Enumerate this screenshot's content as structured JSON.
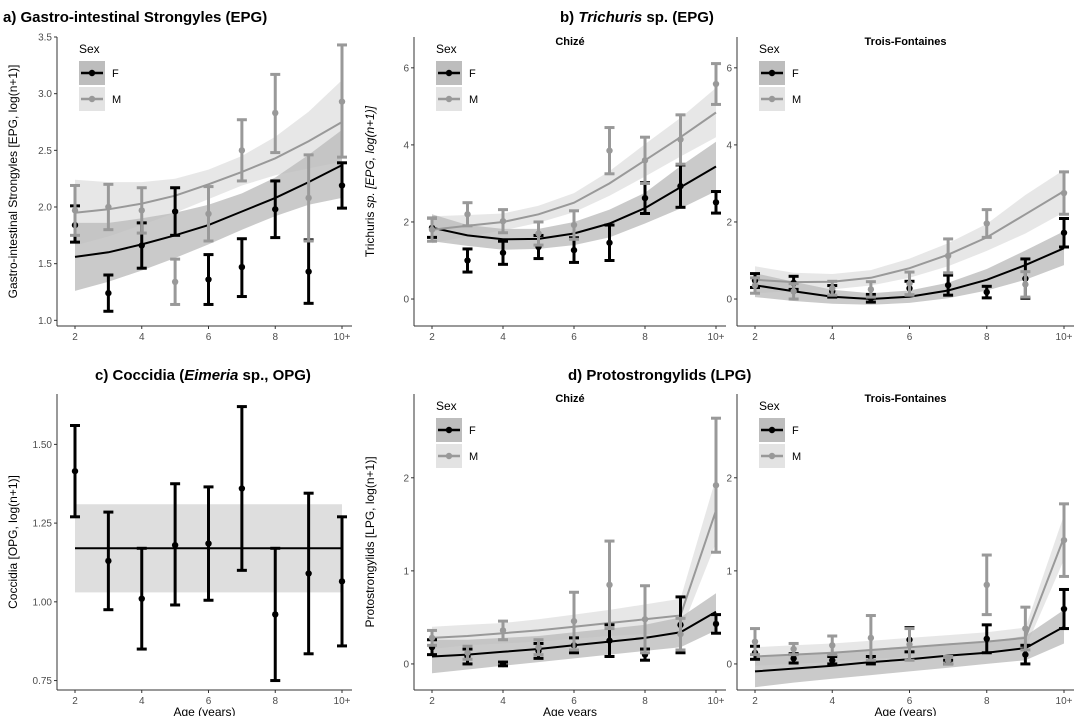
{
  "chart_data": [
    {
      "type": "line",
      "panel": "a",
      "title": "a) Gastro-intestinal Strongyles (EPG)",
      "ylabel": "Gastro-intestinal Strongyles [EPG, log(n+1)]",
      "xlabel": "",
      "x_labels": [
        "2",
        "",
        "4",
        "",
        "6",
        "",
        "8",
        "",
        "10+"
      ],
      "x_ticks": [
        "2",
        "4",
        "6",
        "8",
        "10+"
      ],
      "ylim": [
        0.95,
        3.5
      ],
      "y_ticks": [
        "1.0",
        "1.5",
        "2.0",
        "2.5",
        "3.0",
        "3.5"
      ],
      "legend": {
        "title": "Sex",
        "entries": [
          "F",
          "M"
        ]
      },
      "facets": [
        {
          "strip": "",
          "series": [
            {
              "name": "F",
              "mean": [
                1.84,
                1.24,
                1.66,
                1.96,
                1.36,
                1.47,
                1.98,
                1.43,
                2.19
              ],
              "lower": [
                1.69,
                1.08,
                1.46,
                1.75,
                1.14,
                1.21,
                1.73,
                1.15,
                1.99
              ],
              "upper": [
                2.01,
                1.4,
                1.86,
                2.17,
                1.58,
                1.72,
                2.23,
                1.71,
                2.39
              ],
              "fit": [
                1.56,
                1.6,
                1.67,
                1.75,
                1.84,
                1.96,
                2.08,
                2.22,
                2.37
              ],
              "fit_lower": [
                1.26,
                1.34,
                1.44,
                1.55,
                1.67,
                1.8,
                1.92,
                2.02,
                2.08
              ],
              "fit_upper": [
                1.86,
                1.86,
                1.9,
                1.95,
                2.02,
                2.12,
                2.26,
                2.46,
                2.68
              ]
            },
            {
              "name": "M",
              "mean": [
                1.97,
                2.0,
                1.97,
                1.34,
                1.94,
                2.5,
                2.83,
                2.08,
                2.93
              ],
              "lower": [
                1.75,
                1.8,
                1.77,
                1.14,
                1.7,
                2.23,
                2.48,
                1.7,
                2.44
              ],
              "upper": [
                2.19,
                2.2,
                2.17,
                1.54,
                2.18,
                2.77,
                3.17,
                2.46,
                3.43
              ],
              "fit": [
                1.95,
                1.98,
                2.03,
                2.1,
                2.2,
                2.31,
                2.43,
                2.58,
                2.75
              ],
              "fit_lower": [
                1.66,
                1.74,
                1.84,
                1.95,
                2.07,
                2.19,
                2.28,
                2.34,
                2.4
              ],
              "fit_upper": [
                2.24,
                2.22,
                2.22,
                2.25,
                2.33,
                2.45,
                2.62,
                2.84,
                3.12
              ]
            }
          ]
        }
      ]
    },
    {
      "type": "line",
      "panel": "b",
      "title_parts": [
        "b) ",
        "Trichuris",
        " sp. (EPG)"
      ],
      "ylabel_parts": [
        "Trichuris",
        " sp. [EPG, log(n+1)]"
      ],
      "xlabel": "",
      "x_labels": [
        "2",
        "",
        "4",
        "",
        "6",
        "",
        "8",
        "",
        "10+"
      ],
      "x_ticks": [
        "2",
        "4",
        "6",
        "8",
        "10+"
      ],
      "ylim": [
        -0.7,
        6.8
      ],
      "y_ticks": [
        "0",
        "2",
        "4",
        "6"
      ],
      "legend": {
        "title": "Sex",
        "entries": [
          "F",
          "M"
        ]
      },
      "facets": [
        {
          "strip": "Chizé",
          "series": [
            {
              "name": "F",
              "mean": [
                1.85,
                1.0,
                1.2,
                1.35,
                1.27,
                1.46,
                2.62,
                2.93,
                2.51
              ],
              "lower": [
                1.6,
                0.7,
                0.9,
                1.05,
                0.95,
                1.0,
                2.22,
                2.38,
                2.23
              ],
              "upper": [
                2.1,
                1.3,
                1.5,
                1.65,
                1.59,
                1.92,
                3.02,
                3.48,
                2.79
              ],
              "fit": [
                1.85,
                1.65,
                1.55,
                1.56,
                1.7,
                1.96,
                2.36,
                2.9,
                3.44
              ],
              "fit_lower": [
                1.5,
                1.38,
                1.28,
                1.3,
                1.4,
                1.6,
                1.96,
                2.35,
                2.8
              ],
              "fit_upper": [
                2.2,
                1.92,
                1.82,
                1.82,
                2.0,
                2.32,
                2.76,
                3.45,
                4.08
              ]
            },
            {
              "name": "M",
              "mean": [
                1.8,
                2.2,
                2.02,
                1.7,
                1.92,
                3.85,
                3.6,
                4.14,
                5.58
              ],
              "lower": [
                1.5,
                1.9,
                1.72,
                1.4,
                1.55,
                3.25,
                3.0,
                3.5,
                5.05
              ],
              "upper": [
                2.1,
                2.5,
                2.32,
                2.0,
                2.29,
                4.45,
                4.2,
                4.78,
                6.11
              ],
              "fit": [
                1.8,
                1.9,
                2.0,
                2.2,
                2.5,
                3.0,
                3.6,
                4.2,
                4.84
              ],
              "fit_lower": [
                1.45,
                1.62,
                1.78,
                1.98,
                2.25,
                2.68,
                3.18,
                3.7,
                4.2
              ],
              "fit_upper": [
                2.15,
                2.18,
                2.22,
                2.42,
                2.75,
                3.32,
                4.02,
                4.7,
                5.48
              ]
            }
          ]
        },
        {
          "strip": "Trois-Fontaines",
          "series": [
            {
              "name": "F",
              "mean": [
                0.48,
                0.42,
                0.2,
                0.02,
                0.28,
                0.36,
                0.18,
                0.53,
                1.72
              ],
              "lower": [
                0.3,
                0.25,
                0.05,
                -0.08,
                0.1,
                0.1,
                0.03,
                0.02,
                1.35
              ],
              "upper": [
                0.66,
                0.59,
                0.35,
                0.12,
                0.46,
                0.62,
                0.33,
                1.04,
                2.09
              ],
              "fit": [
                0.36,
                0.2,
                0.06,
                0.0,
                0.06,
                0.22,
                0.5,
                0.88,
                1.32
              ],
              "fit_lower": [
                0.05,
                -0.05,
                -0.12,
                -0.15,
                -0.1,
                0.02,
                0.22,
                0.5,
                0.88
              ],
              "fit_upper": [
                0.67,
                0.45,
                0.24,
                0.15,
                0.22,
                0.42,
                0.78,
                1.26,
                1.76
              ]
            },
            {
              "name": "M",
              "mean": [
                0.35,
                0.2,
                0.28,
                0.25,
                0.4,
                1.12,
                1.96,
                0.38,
                2.75
              ],
              "lower": [
                0.15,
                0.0,
                0.1,
                0.05,
                0.1,
                0.68,
                1.6,
                0.05,
                2.2
              ],
              "upper": [
                0.55,
                0.4,
                0.46,
                0.45,
                0.7,
                1.56,
                2.32,
                0.71,
                3.3
              ],
              "fit": [
                0.5,
                0.44,
                0.45,
                0.55,
                0.8,
                1.15,
                1.6,
                2.2,
                2.8
              ],
              "fit_lower": [
                0.15,
                0.2,
                0.25,
                0.35,
                0.55,
                0.85,
                1.25,
                1.7,
                2.25
              ],
              "fit_upper": [
                0.85,
                0.68,
                0.65,
                0.75,
                1.05,
                1.45,
                1.95,
                2.7,
                3.35
              ]
            }
          ]
        }
      ]
    },
    {
      "type": "line",
      "panel": "c",
      "title_parts": [
        "c) Coccidia (",
        "Eimeria",
        " sp., OPG)"
      ],
      "ylabel": "Coccidia [OPG, log(n+1)]",
      "xlabel": "Age (years)",
      "x_labels": [
        "2",
        "",
        "4",
        "",
        "6",
        "",
        "8",
        "",
        "10+"
      ],
      "x_ticks": [
        "2",
        "4",
        "6",
        "8",
        "10+"
      ],
      "ylim": [
        0.72,
        1.66
      ],
      "y_ticks": [
        "0.75",
        "1.00",
        "1.25",
        "1.50"
      ],
      "facets": [
        {
          "strip": "",
          "series": [
            {
              "name": "",
              "mean": [
                1.415,
                1.13,
                1.01,
                1.18,
                1.185,
                1.36,
                0.96,
                1.09,
                1.065
              ],
              "lower": [
                1.27,
                0.975,
                0.85,
                0.99,
                1.005,
                1.1,
                0.75,
                0.835,
                0.86
              ],
              "upper": [
                1.56,
                1.285,
                1.17,
                1.375,
                1.365,
                1.62,
                1.17,
                1.345,
                1.27
              ],
              "fit": [
                1.17,
                1.17,
                1.17,
                1.17,
                1.17,
                1.17,
                1.17,
                1.17,
                1.17
              ],
              "fit_lower": [
                1.03,
                1.03,
                1.03,
                1.03,
                1.03,
                1.03,
                1.03,
                1.03,
                1.03
              ],
              "fit_upper": [
                1.31,
                1.31,
                1.31,
                1.31,
                1.31,
                1.31,
                1.31,
                1.31,
                1.31
              ]
            }
          ]
        }
      ]
    },
    {
      "type": "line",
      "panel": "d",
      "title": "d) Protostrongylids (LPG)",
      "ylabel": "Protostrongylids [LPG, log(n+1)]",
      "xlabel": "Age years",
      "xlabel_right": "Age (years)",
      "x_labels": [
        "2",
        "",
        "4",
        "",
        "6",
        "",
        "8",
        "",
        "10+"
      ],
      "x_ticks": [
        "2",
        "4",
        "6",
        "8",
        "10+"
      ],
      "ylim": [
        -0.28,
        2.9
      ],
      "y_ticks": [
        "0",
        "1",
        "2"
      ],
      "legend": {
        "title": "Sex",
        "entries": [
          "F",
          "M"
        ]
      },
      "facets": [
        {
          "strip": "Chizé",
          "series": [
            {
              "name": "F",
              "mean": [
                0.18,
                0.08,
                0.0,
                0.14,
                0.2,
                0.25,
                0.1,
                0.42,
                0.43
              ],
              "lower": [
                0.1,
                0.0,
                -0.02,
                0.06,
                0.12,
                0.08,
                0.04,
                0.12,
                0.33
              ],
              "upper": [
                0.26,
                0.16,
                0.02,
                0.22,
                0.28,
                0.42,
                0.16,
                0.72,
                0.53
              ],
              "fit": [
                0.08,
                0.1,
                0.13,
                0.16,
                0.2,
                0.24,
                0.28,
                0.34,
                0.56
              ],
              "fit_lower": [
                -0.1,
                -0.06,
                -0.02,
                0.02,
                0.06,
                0.1,
                0.14,
                0.18,
                0.36
              ],
              "fit_upper": [
                0.26,
                0.26,
                0.28,
                0.3,
                0.34,
                0.38,
                0.42,
                0.5,
                0.76
              ]
            },
            {
              "name": "M",
              "mean": [
                0.28,
                0.12,
                0.36,
                0.18,
                0.46,
                0.85,
                0.48,
                0.32,
                1.92
              ],
              "lower": [
                0.2,
                0.05,
                0.26,
                0.1,
                0.15,
                0.38,
                0.12,
                0.15,
                1.2
              ],
              "upper": [
                0.36,
                0.19,
                0.46,
                0.26,
                0.77,
                1.32,
                0.84,
                0.49,
                2.64
              ],
              "fit": [
                0.28,
                0.3,
                0.33,
                0.36,
                0.4,
                0.44,
                0.48,
                0.52,
                1.65
              ],
              "fit_lower": [
                0.16,
                0.2,
                0.22,
                0.24,
                0.27,
                0.3,
                0.32,
                0.34,
                1.3
              ],
              "fit_upper": [
                0.4,
                0.42,
                0.44,
                0.48,
                0.53,
                0.58,
                0.64,
                0.7,
                2.0
              ]
            }
          ]
        },
        {
          "strip": "Trois-Fontaines",
          "series": [
            {
              "name": "F",
              "mean": [
                0.12,
                0.06,
                0.04,
                0.04,
                0.26,
                0.02,
                0.27,
                0.1,
                0.59
              ],
              "lower": [
                0.05,
                0.01,
                0.0,
                0.0,
                0.13,
                0.0,
                0.12,
                0.0,
                0.38
              ],
              "upper": [
                0.19,
                0.11,
                0.08,
                0.08,
                0.39,
                0.04,
                0.42,
                0.2,
                0.8
              ],
              "fit": [
                -0.08,
                -0.05,
                -0.02,
                0.02,
                0.05,
                0.09,
                0.12,
                0.17,
                0.4
              ],
              "fit_lower": [
                -0.25,
                -0.2,
                -0.16,
                -0.12,
                -0.08,
                -0.04,
                0.0,
                0.04,
                0.22
              ],
              "fit_upper": [
                0.09,
                0.1,
                0.12,
                0.16,
                0.18,
                0.22,
                0.24,
                0.3,
                0.58
              ]
            },
            {
              "name": "M",
              "mean": [
                0.24,
                0.16,
                0.2,
                0.28,
                0.21,
                0.04,
                0.85,
                0.38,
                1.33
              ],
              "lower": [
                0.1,
                0.1,
                0.1,
                0.04,
                0.04,
                0.0,
                0.53,
                0.15,
                0.94
              ],
              "upper": [
                0.38,
                0.22,
                0.3,
                0.52,
                0.38,
                0.08,
                1.17,
                0.61,
                1.72
              ],
              "fit": [
                0.08,
                0.1,
                0.12,
                0.15,
                0.18,
                0.21,
                0.24,
                0.28,
                1.36
              ],
              "fit_lower": [
                -0.02,
                0.0,
                0.02,
                0.05,
                0.08,
                0.11,
                0.14,
                0.17,
                1.12
              ],
              "fit_upper": [
                0.18,
                0.2,
                0.22,
                0.25,
                0.28,
                0.31,
                0.34,
                0.39,
                1.6
              ]
            }
          ]
        }
      ]
    }
  ],
  "colors": {
    "F_line": "#000000",
    "M_line": "#999999",
    "F_band": "#bdbdbd",
    "M_band": "#e3e3e3",
    "single_band": "#d6d6d6",
    "axis": "#333333"
  }
}
